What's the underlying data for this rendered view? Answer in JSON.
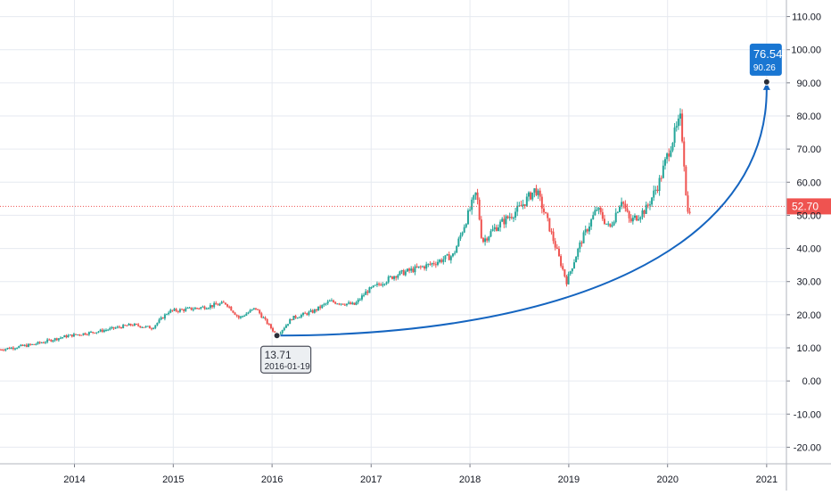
{
  "colors": {
    "up": "#26a69a",
    "down": "#ef5350",
    "grid": "#e6eaf0",
    "axis_text": "#131722",
    "arc": "#1565c0",
    "price_line": "#ef5350",
    "target_badge": "#1976d2"
  },
  "chart_data": {
    "type": "candlestick",
    "x_ticks": [
      "2014",
      "2015",
      "2016",
      "2017",
      "2018",
      "2019",
      "2020",
      "2021"
    ],
    "y_ticks": [
      "110.00",
      "100.00",
      "90.00",
      "80.00",
      "70.00",
      "60.00",
      "50.00",
      "40.00",
      "30.00",
      "20.00",
      "10.00",
      "0.00",
      "-10.00",
      "-20.00"
    ],
    "ylim": [
      -25,
      115
    ],
    "xlim": [
      "2013-04-01",
      "2021-03-15"
    ],
    "grid": true,
    "last_price": {
      "label": "52.70",
      "value": 52.7
    },
    "anchors": [
      [
        "2013-04-01",
        9.5
      ],
      [
        "2013-08-01",
        11
      ],
      [
        "2013-12-01",
        13.5
      ],
      [
        "2014-04-01",
        15
      ],
      [
        "2014-08-01",
        17
      ],
      [
        "2014-10-15",
        16
      ],
      [
        "2014-12-15",
        21
      ],
      [
        "2015-04-01",
        22
      ],
      [
        "2015-07-15",
        23.5
      ],
      [
        "2015-09-01",
        19
      ],
      [
        "2015-11-01",
        22
      ],
      [
        "2016-01-19",
        13.71
      ],
      [
        "2016-03-15",
        19
      ],
      [
        "2016-06-01",
        21
      ],
      [
        "2016-08-01",
        24
      ],
      [
        "2016-11-01",
        23
      ],
      [
        "2016-12-15",
        27
      ],
      [
        "2017-04-01",
        32
      ],
      [
        "2017-08-01",
        35
      ],
      [
        "2017-11-01",
        38
      ],
      [
        "2017-12-15",
        48
      ],
      [
        "2018-01-25",
        57
      ],
      [
        "2018-02-15",
        42
      ],
      [
        "2018-04-01",
        46
      ],
      [
        "2018-07-01",
        52
      ],
      [
        "2018-09-01",
        58
      ],
      [
        "2018-10-15",
        48
      ],
      [
        "2018-12-24",
        30
      ],
      [
        "2019-02-15",
        42
      ],
      [
        "2019-04-15",
        52
      ],
      [
        "2019-06-01",
        46
      ],
      [
        "2019-07-15",
        55
      ],
      [
        "2019-08-15",
        48
      ],
      [
        "2019-10-15",
        52
      ],
      [
        "2019-12-01",
        60
      ],
      [
        "2020-01-15",
        72
      ],
      [
        "2020-02-18",
        79
      ],
      [
        "2020-02-28",
        70
      ],
      [
        "2020-03-10",
        56
      ],
      [
        "2020-03-18",
        49
      ],
      [
        "2020-03-24",
        52.7
      ]
    ],
    "annotations": {
      "start": {
        "date": "2016-01-19",
        "value": 13.71,
        "label_value": "13.71",
        "label_date": "2016-01-19"
      },
      "target": {
        "date": "2021-01-01",
        "value": 90.26,
        "label_top": "76.54",
        "label_bottom": "90.26"
      }
    }
  }
}
